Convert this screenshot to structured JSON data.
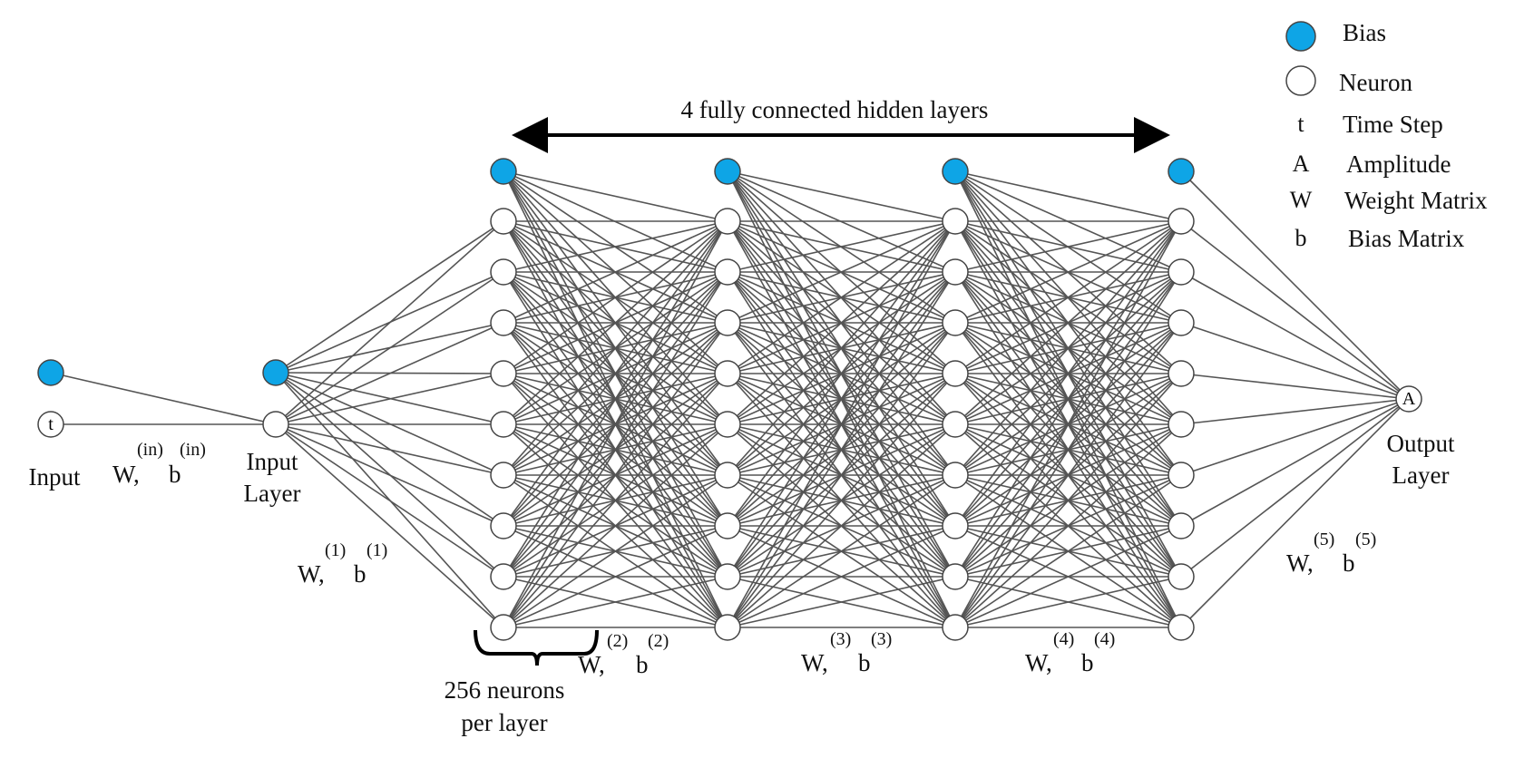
{
  "title": "4 fully connected hidden layers",
  "colors": {
    "bias": "#0ea5e6",
    "neuron": "#ffffff",
    "edge": "#555555",
    "stroke": "#444444"
  },
  "legend": [
    {
      "key": "",
      "icon": "bias-circle",
      "label": "Bias"
    },
    {
      "key": "",
      "icon": "neuron-circle",
      "label": "Neuron"
    },
    {
      "key": "t",
      "label": "Time Step"
    },
    {
      "key": "A",
      "label": "Amplitude"
    },
    {
      "key": "W",
      "label": "Weight Matrix"
    },
    {
      "key": "b",
      "label": "Bias Matrix"
    }
  ],
  "input_node_label": "t",
  "output_node_label": "A",
  "labels": {
    "input": "Input",
    "input_layer": "Input\nLayer",
    "output_layer": "Output\nLayer",
    "neurons_per_layer": "256 neurons\nper layer"
  },
  "weights": [
    {
      "w": "W,",
      "b": "b",
      "sup_w": "(in)",
      "sup_b": "(in)"
    },
    {
      "w": "W,",
      "b": "b",
      "sup_w": "(1)",
      "sup_b": "(1)"
    },
    {
      "w": "W,",
      "b": "b",
      "sup_w": "(2)",
      "sup_b": "(2)"
    },
    {
      "w": "W,",
      "b": "b",
      "sup_w": "(3)",
      "sup_b": "(3)"
    },
    {
      "w": "W,",
      "b": "b",
      "sup_w": "(4)",
      "sup_b": "(4)"
    },
    {
      "w": "W,",
      "b": "b",
      "sup_w": "(5)",
      "sup_b": "(5)"
    }
  ]
}
